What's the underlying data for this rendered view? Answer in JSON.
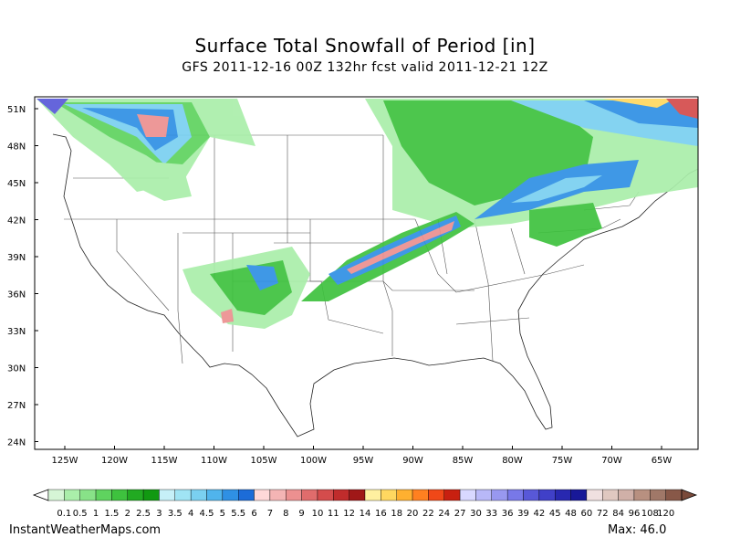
{
  "title": "Surface Total Snowfall of Period [in]",
  "subtitle": "GFS 2011-12-16 00Z 132hr fcst valid 2011-12-21 12Z",
  "lat_ticks": [
    "51N",
    "48N",
    "45N",
    "42N",
    "39N",
    "36N",
    "33N",
    "30N",
    "27N",
    "24N"
  ],
  "lon_ticks": [
    "125W",
    "120W",
    "115W",
    "110W",
    "105W",
    "100W",
    "95W",
    "90W",
    "85W",
    "80W",
    "75W",
    "70W",
    "65W"
  ],
  "legend": {
    "labels": [
      "0.1",
      "0.5",
      "1",
      "1.5",
      "2",
      "2.5",
      "3",
      "3.5",
      "4",
      "4.5",
      "5",
      "5.5",
      "6",
      "7",
      "8",
      "9",
      "10",
      "11",
      "12",
      "14",
      "16",
      "18",
      "20",
      "22",
      "24",
      "27",
      "30",
      "33",
      "36",
      "39",
      "42",
      "45",
      "48",
      "60",
      "72",
      "84",
      "96",
      "108",
      "120"
    ],
    "colors": [
      "#d6f5d6",
      "#aaeeaa",
      "#88e288",
      "#5fd35f",
      "#3ec23e",
      "#22aa22",
      "#119911",
      "#c6f0f8",
      "#a0e4f4",
      "#7ad0f0",
      "#50b4ec",
      "#2f90e4",
      "#1c6cd8",
      "#ffd8d8",
      "#f4b4b4",
      "#ec9090",
      "#e06c6c",
      "#d44c4c",
      "#c02c2c",
      "#a01818",
      "#fff0a0",
      "#ffd860",
      "#ffb030",
      "#ff8020",
      "#f04818",
      "#c82010",
      "#d8d8ff",
      "#b8b8f8",
      "#9898f0",
      "#7878e8",
      "#5858d8",
      "#4040c8",
      "#2828b0",
      "#181898",
      "#f0e0e0",
      "#e0c8c0",
      "#d0b0a8",
      "#b89080",
      "#a07868",
      "#885848"
    ]
  },
  "footer": {
    "source": "InstantWeatherMaps.com",
    "max_label": "Max:  46.0"
  }
}
